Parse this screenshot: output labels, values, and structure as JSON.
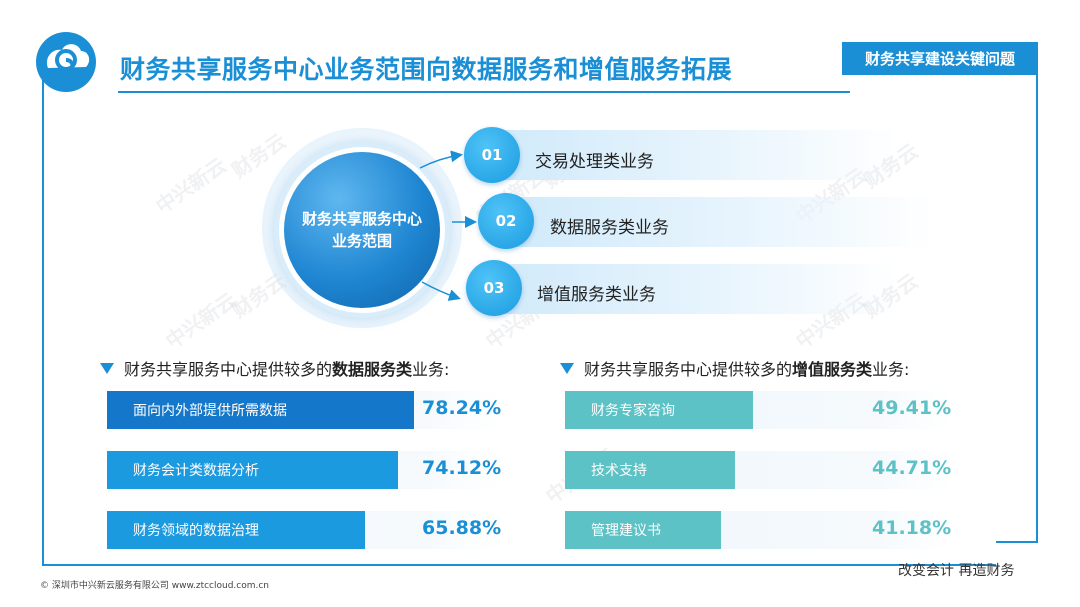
{
  "header": {
    "title": "财务共享服务中心业务范围向数据服务和增值服务拓展",
    "topic_tag": "财务共享建设关键问题"
  },
  "hub": {
    "line1": "财务共享服务中心",
    "line2": "业务范围"
  },
  "items": [
    {
      "num": "01",
      "label": "交易处理类业务"
    },
    {
      "num": "02",
      "label": "数据服务类业务"
    },
    {
      "num": "03",
      "label": "增值服务类业务"
    }
  ],
  "watermark_text": "中兴新云",
  "watermark_text2": "财务云",
  "left_section": {
    "prefix": "财务共享服务中心提供较多的",
    "bold": "数据服务类",
    "suffix": "业务:",
    "bar_color": "#1b9ae0",
    "value_color": "#1a8fd6",
    "bars": [
      {
        "label": "面向内外部提供所需数据",
        "value_text": "78.24%",
        "value": 78.24
      },
      {
        "label": "财务会计类数据分析",
        "value_text": "74.12%",
        "value": 74.12
      },
      {
        "label": "财务领域的数据治理",
        "value_text": "65.88%",
        "value": 65.88
      }
    ]
  },
  "right_section": {
    "prefix": "财务共享服务中心提供较多的",
    "bold": "增值服务类",
    "suffix": "业务:",
    "bar_color": "#5cc2c6",
    "value_color": "#5cc2c6",
    "bars": [
      {
        "label": "财务专家咨询",
        "value_text": "49.41%",
        "value": 49.41
      },
      {
        "label": "技术支持",
        "value_text": "44.71%",
        "value": 44.71
      },
      {
        "label": "管理建议书",
        "value_text": "41.18%",
        "value": 41.18
      }
    ]
  },
  "footer": {
    "left": "© 深圳市中兴新云服务有限公司  www.ztccloud.com.cn",
    "right": "改变会计  再造财务"
  },
  "colors": {
    "brand_blue": "#1a8fd6",
    "teal": "#5cc2c6"
  }
}
